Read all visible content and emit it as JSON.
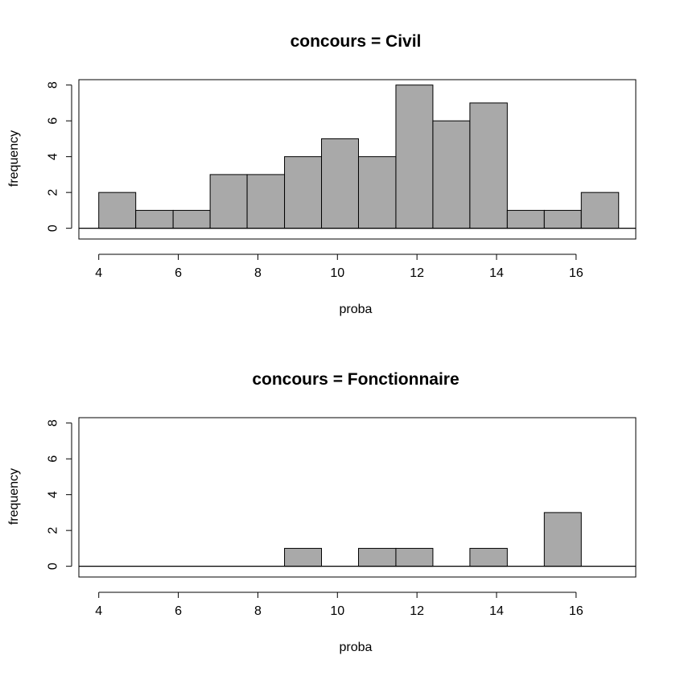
{
  "chart_data": [
    {
      "type": "bar",
      "title": "concours = Civil",
      "xlabel": "proba",
      "ylabel": "frequency",
      "bin_edges": [
        4.0,
        4.93,
        5.87,
        6.8,
        7.73,
        8.67,
        9.6,
        10.53,
        11.47,
        12.4,
        13.33,
        14.27,
        15.2,
        16.13,
        17.07
      ],
      "values": [
        2,
        1,
        1,
        3,
        3,
        4,
        5,
        4,
        8,
        6,
        7,
        1,
        1,
        2
      ],
      "xlim": [
        3.5,
        17.5
      ],
      "ylim": [
        -0.6,
        8.3
      ],
      "xticks": [
        4,
        6,
        8,
        10,
        12,
        14,
        16
      ],
      "yticks": [
        0,
        2,
        4,
        6,
        8
      ],
      "grid": false
    },
    {
      "type": "bar",
      "title": "concours = Fonctionnaire",
      "xlabel": "proba",
      "ylabel": "frequency",
      "bin_edges": [
        4.0,
        4.93,
        5.87,
        6.8,
        7.73,
        8.67,
        9.6,
        10.53,
        11.47,
        12.4,
        13.33,
        14.27,
        15.2,
        16.13,
        17.07
      ],
      "values": [
        0,
        0,
        0,
        0,
        0,
        1,
        0,
        1,
        1,
        0,
        1,
        0,
        3,
        0
      ],
      "xlim": [
        3.5,
        17.5
      ],
      "ylim": [
        -0.6,
        8.3
      ],
      "xticks": [
        4,
        6,
        8,
        10,
        12,
        14,
        16
      ],
      "yticks": [
        0,
        2,
        4,
        6,
        8
      ],
      "grid": false
    }
  ]
}
